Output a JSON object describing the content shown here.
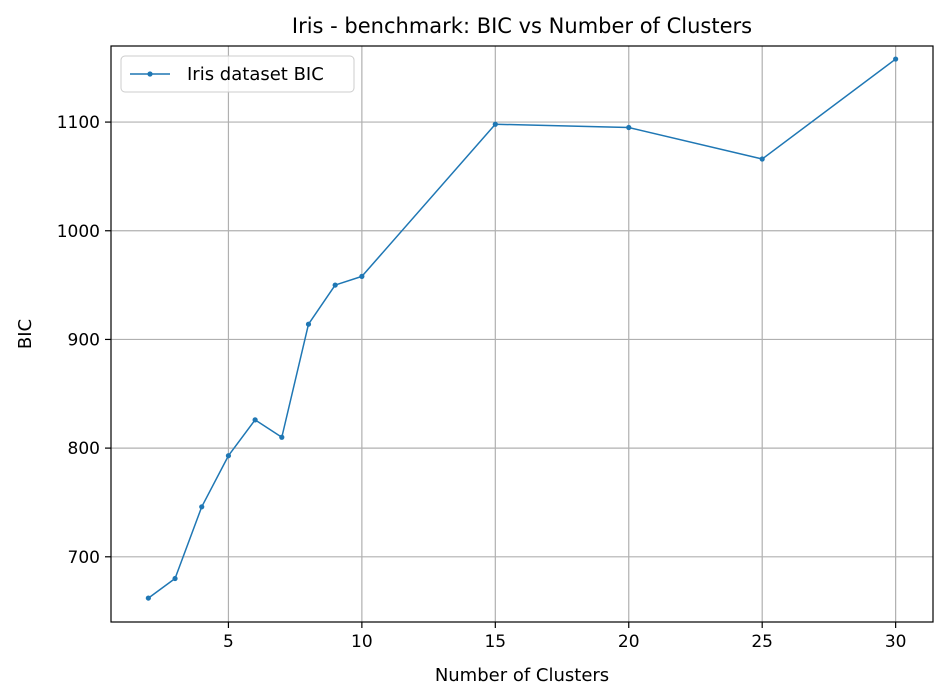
{
  "chart_data": {
    "type": "line",
    "title": "Iris - benchmark: BIC vs Number of Clusters",
    "xlabel": "Number of Clusters",
    "ylabel": "BIC",
    "xlim": [
      0.6,
      31.4
    ],
    "ylim": [
      640,
      1170
    ],
    "xticks": [
      5,
      10,
      15,
      20,
      25,
      30
    ],
    "yticks": [
      700,
      800,
      900,
      1000,
      1100
    ],
    "grid": true,
    "legend_position": "upper-left",
    "series": [
      {
        "name": "Iris dataset BIC",
        "color": "#1f77b4",
        "marker": "circle",
        "x": [
          2,
          3,
          4,
          5,
          6,
          7,
          8,
          9,
          10,
          15,
          20,
          25,
          30
        ],
        "y": [
          662,
          680,
          746,
          793,
          826,
          810,
          914,
          950,
          958,
          1098,
          1095,
          1066,
          1158
        ]
      }
    ]
  }
}
